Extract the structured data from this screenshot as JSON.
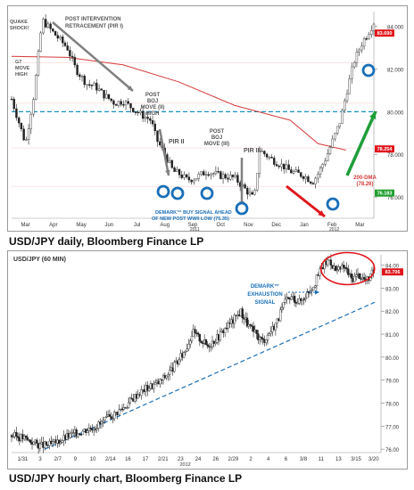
{
  "chart_data": [
    {
      "type": "line",
      "series_kind": "candlestick",
      "caption": "USD/JPY daily, Bloomberg Finance LP",
      "x_labels": [
        "Mar",
        "Apr",
        "May",
        "Jun",
        "Jul",
        "Aug",
        "Sep",
        "Oct",
        "Nov",
        "Dec",
        "Jan",
        "Feb",
        "Mar"
      ],
      "x_sublabels": [
        {
          "text": "2011",
          "after": "Aug"
        },
        {
          "text": "2012",
          "after": "Feb"
        }
      ],
      "y_labels": [
        "84.000",
        "82.000",
        "80.000",
        "78.000",
        "76.000"
      ],
      "ylim": [
        75.0,
        84.7
      ],
      "price_badges": [
        {
          "text": "83.690",
          "value": 83.69,
          "color": "#e0161b"
        },
        {
          "text": "78.254",
          "value": 78.254,
          "color": "#e0161b"
        },
        {
          "text": "76.183",
          "value": 76.183,
          "color": "#20a030"
        }
      ],
      "reference_line": {
        "value": 80.0,
        "style": "dashed",
        "color": "#1a8fc4"
      },
      "moving_average": {
        "name": "200-DMA",
        "label": "200-DMA",
        "value_label": "(78.26)",
        "color": "#d43a3a",
        "points": [
          [
            0,
            82.6
          ],
          [
            2,
            82.55
          ],
          [
            4,
            82.2
          ],
          [
            6,
            81.4
          ],
          [
            8,
            80.3
          ],
          [
            10,
            79.6
          ],
          [
            11,
            78.5
          ],
          [
            12,
            78.2
          ]
        ]
      },
      "price": {
        "points": [
          [
            0,
            80.6
          ],
          [
            0.5,
            78.5
          ],
          [
            0.8,
            80.8
          ],
          [
            1.1,
            84.3
          ],
          [
            1.5,
            83.7
          ],
          [
            2,
            83.0
          ],
          [
            2.3,
            82.0
          ],
          [
            2.7,
            81.3
          ],
          [
            3,
            81.2
          ],
          [
            3.3,
            80.8
          ],
          [
            3.7,
            80.4
          ],
          [
            4,
            80.5
          ],
          [
            4.3,
            80.2
          ],
          [
            4.6,
            79.9
          ],
          [
            5,
            79.6
          ],
          [
            5.2,
            78.7
          ],
          [
            5.5,
            78.0
          ],
          [
            5.8,
            77.2
          ],
          [
            6,
            77.1
          ],
          [
            6.3,
            76.8
          ],
          [
            6.6,
            76.9
          ],
          [
            7,
            77.2
          ],
          [
            7.5,
            77.0
          ],
          [
            8,
            76.9
          ],
          [
            8.5,
            76.2
          ],
          [
            8.7,
            75.9
          ],
          [
            8.9,
            78.2
          ],
          [
            9.3,
            77.8
          ],
          [
            9.8,
            77.4
          ],
          [
            10,
            77.2
          ],
          [
            10.5,
            77.0
          ],
          [
            10.8,
            76.7
          ],
          [
            11,
            77.1
          ],
          [
            11.3,
            77.9
          ],
          [
            11.6,
            78.9
          ],
          [
            11.8,
            79.6
          ],
          [
            12,
            80.8
          ],
          [
            12.3,
            82.4
          ],
          [
            12.6,
            83.3
          ],
          [
            12.8,
            83.7
          ],
          [
            13,
            84.2
          ]
        ]
      },
      "annotations": [
        {
          "text": "QUAKE SHOCK!",
          "color": "#555555"
        },
        {
          "text": "G7 MOVE HIGH",
          "color": "#555555"
        },
        {
          "text": "POST INTERVENTION RETRACEMENT (PIR I)",
          "color": "#555555"
        },
        {
          "text": "POST BOJ MOVE (II) HIGH",
          "color": "#555555"
        },
        {
          "text": "PIR II",
          "color": "#555555"
        },
        {
          "text": "POST BOJ MOVE (III)",
          "color": "#555555"
        },
        {
          "text": "PIR III",
          "color": "#555555"
        },
        {
          "text": "DEMARK™ BUY SIGNAL AHEAD OF NEW POST WWII LOW (75.35)",
          "color": "#1a6fb8"
        }
      ],
      "demark_markers": 6
    },
    {
      "type": "line",
      "series_kind": "candlestick",
      "caption": "USD/JPY hourly chart, Bloomberg Finance LP",
      "title": "USD/JPY (60 MIN)",
      "x_labels": [
        "1/31",
        "3",
        "2/7",
        "9",
        "10",
        "2/14",
        "16",
        "17",
        "2/21",
        "23",
        "24",
        "26",
        "2/29",
        "2",
        "4",
        "6",
        "3/8",
        "11",
        "13",
        "3/15",
        "3/20"
      ],
      "x_sublabel": "2012",
      "y_labels": [
        "84.00",
        "83.00",
        "82.00",
        "81.00",
        "80.00",
        "79.00",
        "78.00",
        "77.00",
        "76.00"
      ],
      "ylim": [
        75.85,
        84.45
      ],
      "price_badge": {
        "text": "83.706",
        "value": 83.706,
        "color": "#e0161b"
      },
      "annotation": {
        "text": "DEMARK™ EXHAUSTION SIGNAL",
        "color": "#1a6fb8"
      },
      "trendline": {
        "from": [
          0.09,
          76.0
        ],
        "to": [
          0.985,
          82.4
        ],
        "style": "dashed",
        "color": "#1a6fb8"
      },
      "highlight": "ellipse around 83.3–84.3 peak",
      "price": {
        "points": [
          [
            0,
            76.6
          ],
          [
            0.03,
            76.5
          ],
          [
            0.08,
            76.15
          ],
          [
            0.11,
            76.2
          ],
          [
            0.15,
            76.55
          ],
          [
            0.2,
            76.85
          ],
          [
            0.24,
            77.1
          ],
          [
            0.28,
            77.55
          ],
          [
            0.31,
            77.9
          ],
          [
            0.34,
            78.4
          ],
          [
            0.37,
            78.7
          ],
          [
            0.4,
            78.9
          ],
          [
            0.43,
            79.4
          ],
          [
            0.45,
            79.8
          ],
          [
            0.47,
            80.3
          ],
          [
            0.49,
            81.1
          ],
          [
            0.51,
            80.8
          ],
          [
            0.53,
            80.5
          ],
          [
            0.56,
            80.9
          ],
          [
            0.58,
            81.3
          ],
          [
            0.6,
            81.6
          ],
          [
            0.62,
            82.0
          ],
          [
            0.64,
            81.4
          ],
          [
            0.66,
            81.0
          ],
          [
            0.68,
            80.7
          ],
          [
            0.7,
            81.1
          ],
          [
            0.72,
            81.6
          ],
          [
            0.74,
            82.4
          ],
          [
            0.76,
            82.6
          ],
          [
            0.78,
            82.4
          ],
          [
            0.8,
            82.8
          ],
          [
            0.82,
            83.2
          ],
          [
            0.84,
            83.9
          ],
          [
            0.86,
            84.25
          ],
          [
            0.88,
            83.7
          ],
          [
            0.9,
            83.95
          ],
          [
            0.92,
            83.4
          ],
          [
            0.94,
            83.6
          ],
          [
            0.96,
            83.3
          ],
          [
            0.98,
            83.7
          ]
        ]
      }
    }
  ]
}
